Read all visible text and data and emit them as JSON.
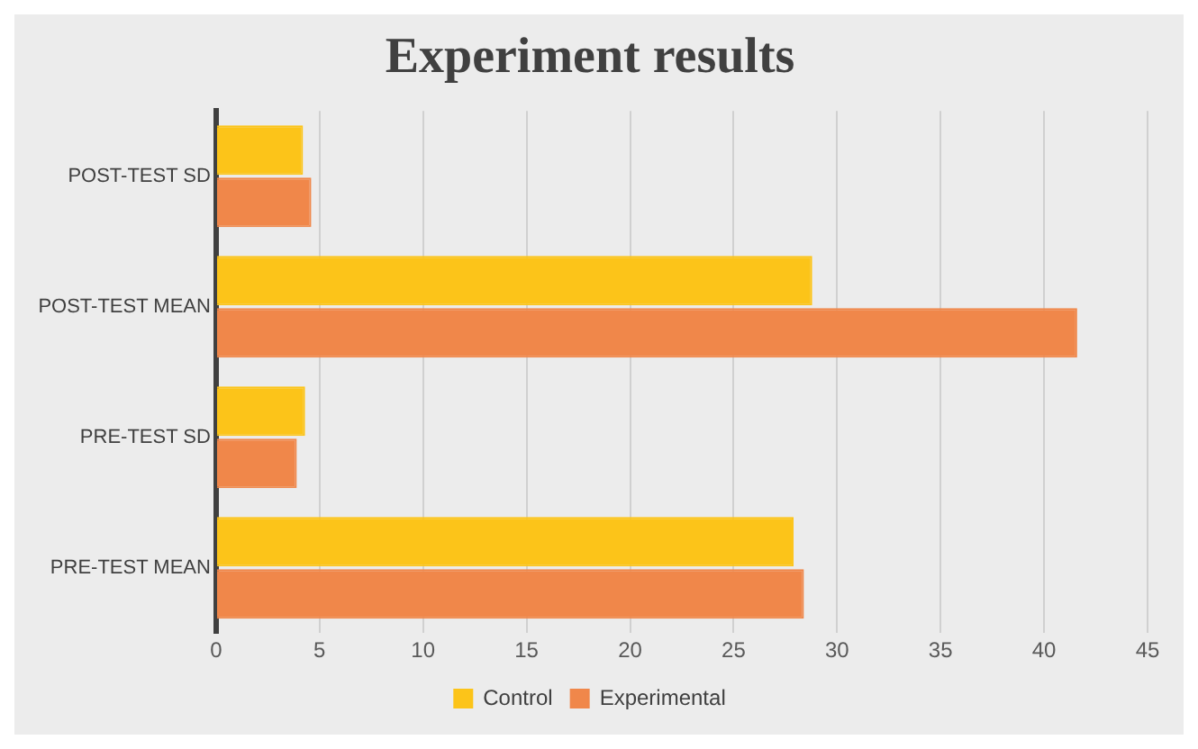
{
  "chart_data": {
    "type": "bar",
    "orientation": "horizontal",
    "title": "Experiment results",
    "categories": [
      "POST-TEST SD",
      "POST-TEST MEAN",
      "PRE-TEST SD",
      "PRE-TEST MEAN"
    ],
    "series": [
      {
        "name": "Control",
        "color": "#fcc419",
        "values": [
          4.2,
          28.8,
          4.3,
          27.9
        ]
      },
      {
        "name": "Experimental",
        "color": "#f0874a",
        "values": [
          4.6,
          41.6,
          3.9,
          28.4
        ]
      }
    ],
    "xlim": [
      0,
      45
    ],
    "xticks": [
      0,
      5,
      10,
      15,
      20,
      25,
      30,
      35,
      40,
      45
    ],
    "grid": "x",
    "legend": "bottom"
  }
}
